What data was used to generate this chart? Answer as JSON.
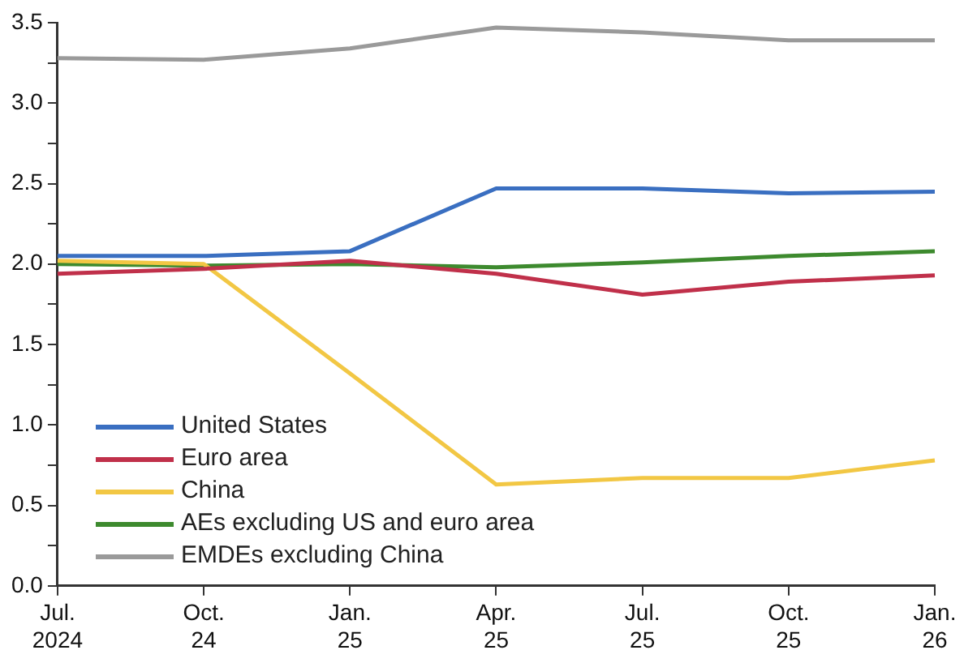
{
  "chart_data": {
    "type": "line",
    "categories": [
      "Jul.\n2024",
      "Oct.\n24",
      "Jan.\n25",
      "Apr.\n25",
      "Jul.\n25",
      "Oct.\n25",
      "Jan.\n26"
    ],
    "series": [
      {
        "name": "United States",
        "color": "#3a6fc1",
        "values": [
          2.05,
          2.05,
          2.08,
          2.47,
          2.47,
          2.44,
          2.45
        ]
      },
      {
        "name": "Euro area",
        "color": "#c0304a",
        "values": [
          1.94,
          1.97,
          2.02,
          1.94,
          1.81,
          1.89,
          1.93
        ]
      },
      {
        "name": "China",
        "color": "#f2c744",
        "values": [
          2.02,
          2.0,
          1.32,
          0.63,
          0.67,
          0.67,
          0.78
        ]
      },
      {
        "name": "AEs excluding US and euro area",
        "color": "#3d8a2e",
        "values": [
          2.0,
          1.99,
          2.0,
          1.98,
          2.01,
          2.05,
          2.08
        ]
      },
      {
        "name": "EMDEs excluding China",
        "color": "#9a9a9a",
        "values": [
          3.28,
          3.27,
          3.34,
          3.47,
          3.44,
          3.39,
          3.39
        ]
      }
    ],
    "ylim": [
      0,
      3.5
    ],
    "yticks": [
      {
        "value": 0,
        "label": "0.0"
      },
      {
        "value": 0.25,
        "label": null
      },
      0.5,
      {
        "value": 0.75,
        "label": null
      },
      {
        "value": 1,
        "label": "1.0"
      },
      {
        "value": 1.25,
        "label": null
      },
      1.5,
      {
        "value": 1.75,
        "label": null
      },
      {
        "value": 2,
        "label": "2.0"
      },
      {
        "value": 2.25,
        "label": null
      },
      2.5,
      {
        "value": 2.75,
        "label": null
      },
      {
        "value": 3,
        "label": "3.0"
      },
      {
        "value": 3.25,
        "label": null
      },
      3.5
    ],
    "grid": false,
    "legend": "bottom left",
    "marker": "none",
    "line_style": "solid"
  }
}
